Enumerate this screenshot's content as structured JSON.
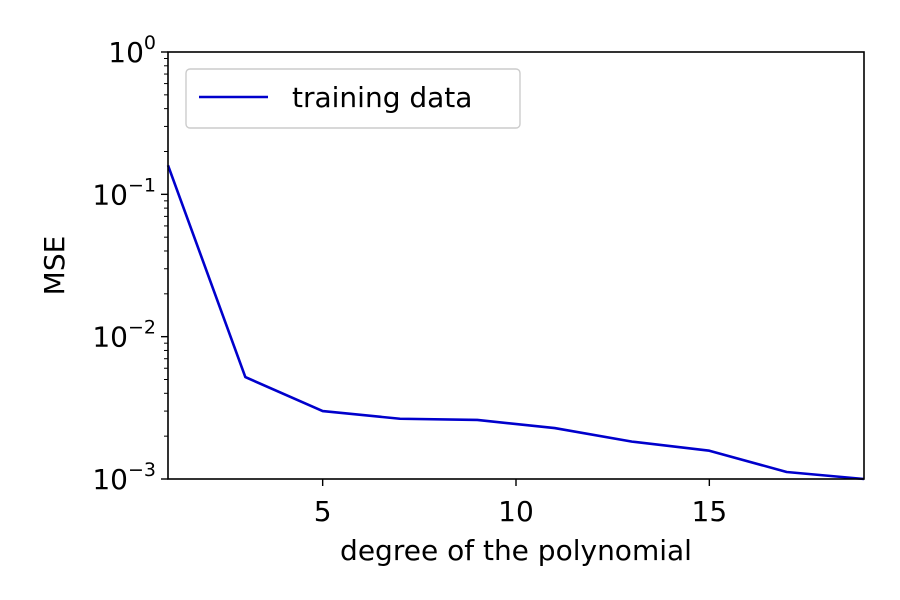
{
  "chart_data": {
    "type": "line",
    "title": "",
    "xlabel": "degree of the polynomial",
    "ylabel": "MSE",
    "xscale": "linear",
    "yscale": "log",
    "xlim": [
      1,
      19
    ],
    "ylim": [
      0.001,
      1
    ],
    "grid": false,
    "legend_position": "top-left",
    "x_ticks": [
      {
        "value": 5,
        "label": "5"
      },
      {
        "value": 10,
        "label": "10"
      },
      {
        "value": 15,
        "label": "15"
      }
    ],
    "y_ticks": [
      {
        "exp": 0,
        "base": "10",
        "exp_label": "0"
      },
      {
        "exp": -1,
        "base": "10",
        "exp_label": "−1"
      },
      {
        "exp": -2,
        "base": "10",
        "exp_label": "−2"
      },
      {
        "exp": -3,
        "base": "10",
        "exp_label": "−3"
      }
    ],
    "series": [
      {
        "name": "training data",
        "color": "#0000cc",
        "x": [
          1,
          3,
          5,
          7,
          9,
          11,
          13,
          15,
          17,
          19
        ],
        "y": [
          0.16,
          0.0052,
          0.003,
          0.00265,
          0.0026,
          0.00228,
          0.00183,
          0.00158,
          0.00112,
          0.001
        ]
      }
    ]
  }
}
